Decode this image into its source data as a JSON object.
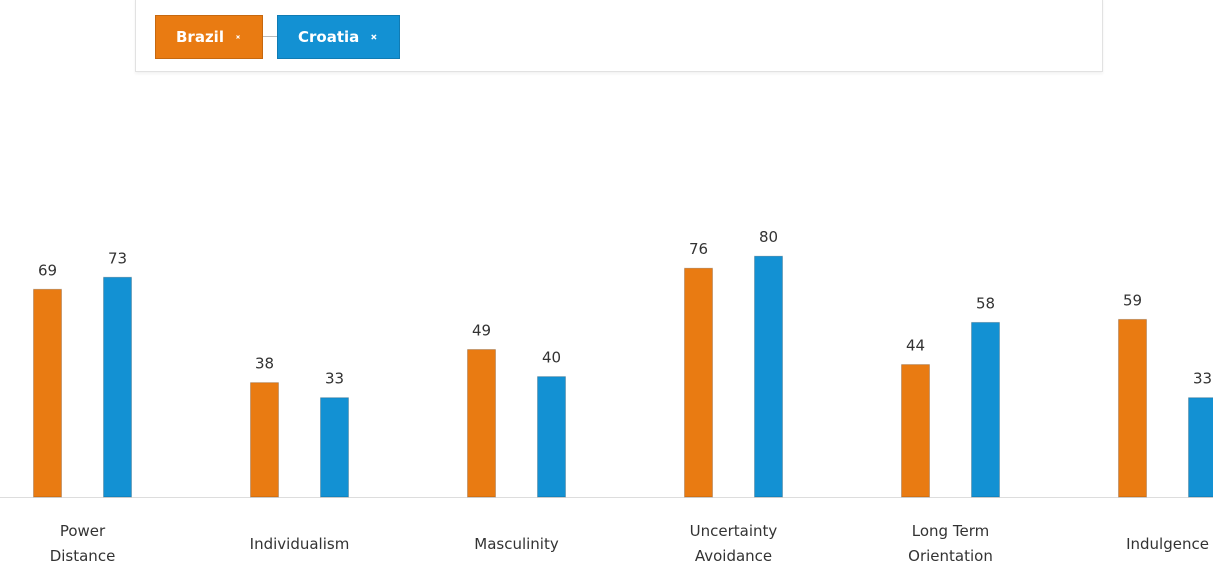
{
  "chart_data": {
    "type": "bar",
    "categories": [
      "Power Distance",
      "Individualism",
      "Masculinity",
      "Uncertainty Avoidance",
      "Long Term Orientation",
      "Indulgence"
    ],
    "series": [
      {
        "name": "Brazil",
        "color": "#e97b12",
        "values": [
          69,
          38,
          49,
          76,
          44,
          59
        ]
      },
      {
        "name": "Croatia",
        "color": "#1391d3",
        "values": [
          73,
          33,
          40,
          80,
          58,
          33
        ]
      }
    ],
    "ylim": [
      0,
      100
    ]
  }
}
